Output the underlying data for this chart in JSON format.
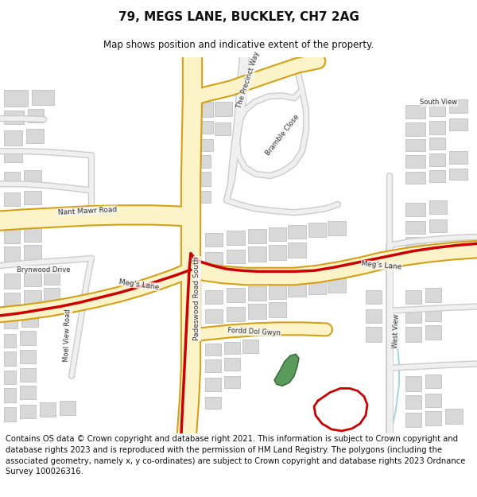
{
  "title": "79, MEGS LANE, BUCKLEY, CH7 2AG",
  "subtitle": "Map shows position and indicative extent of the property.",
  "footer": "Contains OS data © Crown copyright and database right 2021. This information is subject to Crown copyright and database rights 2023 and is reproduced with the permission of HM Land Registry. The polygons (including the associated geometry, namely x, y co-ordinates) are subject to Crown copyright and database rights 2023 Ordnance Survey 100026316.",
  "bg_color": "#ffffff",
  "road_fill": "#fdf3c8",
  "road_border": "#d4a017",
  "red_line_color": "#cc0000",
  "green_fill": "#5a9a5a",
  "water_color": "#c8e4ee",
  "building_color": "#d8d8d8",
  "building_edge": "#b8b8b8",
  "title_fontsize": 11,
  "subtitle_fontsize": 8.5,
  "footer_fontsize": 7.2
}
